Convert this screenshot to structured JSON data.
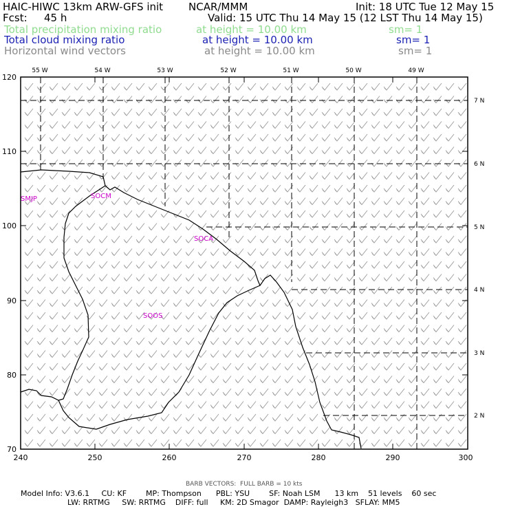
{
  "header": {
    "title": "HAIC-HIWC 13km ARW-GFS init",
    "org": "NCAR/MMM",
    "init": "Init: 18 UTC Tue 12 May 15",
    "fcst_label": "Fcst:",
    "fcst_value": "45 h",
    "valid": "Valid: 15 UTC Thu 14 May 15 (12 LST Thu 14 May 15)",
    "fields": [
      {
        "name": "Total precipitation mixing ratio",
        "height": "at height = 10.00 km",
        "sm": "sm= 1",
        "color": "#8fdc8f"
      },
      {
        "name": "Total cloud mixing ratio",
        "height": "at height = 10.00 km",
        "sm": "sm= 1",
        "color": "#1c22b4"
      },
      {
        "name": "Horizontal wind vectors",
        "height": "at height = 10.00 km",
        "sm": "sm= 1",
        "color": "#8a8a8a"
      }
    ]
  },
  "map": {
    "x_ticks": [
      "240",
      "250",
      "260",
      "270",
      "280",
      "290",
      "300"
    ],
    "y_ticks": [
      "70",
      "80",
      "90",
      "100",
      "110",
      "120"
    ],
    "lon_labels": [
      "55 W",
      "54 W",
      "53 W",
      "52 W",
      "51 W",
      "50 W",
      "49 W"
    ],
    "lat_labels": [
      "7 N",
      "6 N",
      "5 N",
      "4 N",
      "3 N",
      "2 N"
    ],
    "stations": [
      "SMJP",
      "SOCM",
      "SOCA",
      "SOOS"
    ],
    "station_color": "#cc00cc",
    "barb_color": "#9a9a9a"
  },
  "footer": {
    "barb_note": "BARB VECTORS:  FULL BARB = 10 kts",
    "line1": "Model Info: V3.6.1     CU: KF        MP: Thompson      PBL: YSU        SF: Noah LSM      13 km    51 levels    60 sec",
    "line2": "LW: RRTMG     SW: RRTMG    DIFF: full     KM: 2D Smagor  DAMP: Rayleigh3   SFLAY: MM5"
  }
}
